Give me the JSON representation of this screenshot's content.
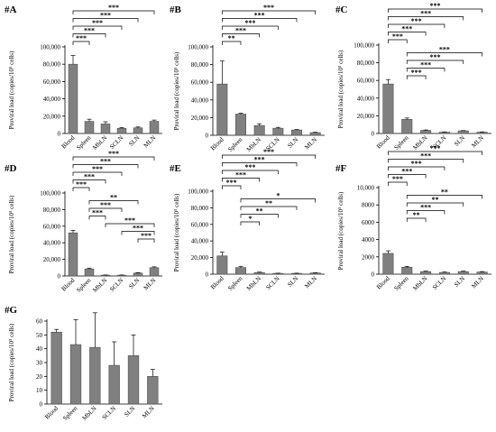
{
  "chart_data": [
    {
      "panel": "#A",
      "type": "bar",
      "ylabel": "Proviral load (copies/10⁵ cells)",
      "categories": [
        "Blood",
        "Spleen",
        "MbLN",
        "SCLN",
        "SLN",
        "MLN"
      ],
      "values": [
        80000,
        14000,
        11000,
        6000,
        6500,
        14000
      ],
      "errors": [
        10000,
        2500,
        2500,
        1000,
        1000,
        1500
      ],
      "ylim": [
        0,
        100000
      ],
      "yticks": [
        "0",
        "20,000",
        "40,000",
        "60,000",
        "80,000",
        "100,000"
      ],
      "tickvals": [
        0,
        20000,
        40000,
        60000,
        80000,
        100000
      ],
      "brackets": [
        {
          "from": "Blood",
          "to": "MLN",
          "label": "***"
        },
        {
          "from": "Blood",
          "to": "SLN",
          "label": "***"
        },
        {
          "from": "Blood",
          "to": "SCLN",
          "label": "***"
        },
        {
          "from": "Blood",
          "to": "MbLN",
          "label": "***"
        },
        {
          "from": "Blood",
          "to": "Spleen",
          "label": "***"
        }
      ]
    },
    {
      "panel": "#B",
      "type": "bar",
      "ylabel": "Proviral load (copies/10⁵ cells)",
      "categories": [
        "Blood",
        "Spleen",
        "MbLN",
        "SCLN",
        "SLN",
        "MLN"
      ],
      "values": [
        58000,
        24000,
        11000,
        8000,
        6000,
        3000
      ],
      "errors": [
        26000,
        1000,
        2000,
        1000,
        500,
        500
      ],
      "ylim": [
        0,
        100000
      ],
      "yticks": [
        "0",
        "20,000",
        "40,000",
        "60,000",
        "80,000",
        "100,000"
      ],
      "tickvals": [
        0,
        20000,
        40000,
        60000,
        80000,
        100000
      ],
      "brackets": [
        {
          "from": "Blood",
          "to": "MLN",
          "label": "***"
        },
        {
          "from": "Blood",
          "to": "SLN",
          "label": "***"
        },
        {
          "from": "Blood",
          "to": "SCLN",
          "label": "***"
        },
        {
          "from": "Blood",
          "to": "MbLN",
          "label": "***"
        },
        {
          "from": "Blood",
          "to": "Spleen",
          "label": "**"
        }
      ]
    },
    {
      "panel": "#C",
      "type": "bar",
      "ylabel": "Proviral load (copies/10⁵ cells)",
      "categories": [
        "Blood",
        "Spleen",
        "MbLN",
        "SCLN",
        "SLN",
        "MLN"
      ],
      "values": [
        56000,
        16000,
        3500,
        1500,
        3000,
        1500
      ],
      "errors": [
        5000,
        1500,
        500,
        300,
        300,
        300
      ],
      "ylim": [
        0,
        100000
      ],
      "yticks": [
        "0",
        "20,000",
        "40,000",
        "60,000",
        "80,000",
        "100,000"
      ],
      "tickvals": [
        0,
        20000,
        40000,
        60000,
        80000,
        100000
      ],
      "brackets": [
        {
          "from": "Blood",
          "to": "MLN",
          "label": "***"
        },
        {
          "from": "Blood",
          "to": "SLN",
          "label": "***"
        },
        {
          "from": "Blood",
          "to": "SCLN",
          "label": "***"
        },
        {
          "from": "Blood",
          "to": "MbLN",
          "label": "***"
        },
        {
          "from": "Blood",
          "to": "Spleen",
          "label": "***"
        },
        {
          "from": "Spleen",
          "to": "MLN",
          "label": "***"
        },
        {
          "from": "Spleen",
          "to": "SLN",
          "label": "***"
        },
        {
          "from": "Spleen",
          "to": "SCLN",
          "label": "***"
        },
        {
          "from": "Spleen",
          "to": "MbLN",
          "label": "***"
        }
      ]
    },
    {
      "panel": "#D",
      "type": "bar",
      "ylabel": "Proviral load (copies/10⁵ cells)",
      "categories": [
        "Blood",
        "Spleen",
        "MbLN",
        "SCLN",
        "SLN",
        "MLN"
      ],
      "values": [
        52000,
        8500,
        1000,
        1000,
        3500,
        10000
      ],
      "errors": [
        3000,
        1000,
        200,
        200,
        500,
        1000
      ],
      "ylim": [
        0,
        100000
      ],
      "yticks": [
        "0",
        "20,000",
        "40,000",
        "60,000",
        "80,000",
        "100,000"
      ],
      "tickvals": [
        0,
        20000,
        40000,
        60000,
        80000,
        100000
      ],
      "brackets": [
        {
          "from": "Blood",
          "to": "MLN",
          "label": "***"
        },
        {
          "from": "Blood",
          "to": "SLN",
          "label": "***"
        },
        {
          "from": "Blood",
          "to": "SCLN",
          "label": "***"
        },
        {
          "from": "Blood",
          "to": "MbLN",
          "label": "***"
        },
        {
          "from": "Blood",
          "to": "Spleen",
          "label": "***"
        },
        {
          "from": "Spleen",
          "to": "SLN",
          "label": "**"
        },
        {
          "from": "Spleen",
          "to": "SCLN",
          "label": "***"
        },
        {
          "from": "Spleen",
          "to": "MbLN",
          "label": "***"
        },
        {
          "from": "MbLN",
          "to": "MLN",
          "label": "***"
        },
        {
          "from": "SCLN",
          "to": "MLN",
          "label": "***"
        },
        {
          "from": "SLN",
          "to": "MLN",
          "label": "***"
        }
      ]
    },
    {
      "panel": "#E",
      "type": "bar",
      "ylabel": "Proviral load (copies/10⁵ cells)",
      "categories": [
        "Blood",
        "Spleen",
        "MbLN",
        "SCLN",
        "SLN",
        "MLN"
      ],
      "values": [
        22000,
        8000,
        2000,
        1000,
        1000,
        1500
      ],
      "errors": [
        4500,
        1500,
        500,
        200,
        200,
        300
      ],
      "ylim": [
        0,
        100000
      ],
      "yticks": [
        "0",
        "20,000",
        "40,000",
        "60,000",
        "80,000",
        "100,000"
      ],
      "tickvals": [
        0,
        20000,
        40000,
        60000,
        80000,
        100000
      ],
      "brackets": [
        {
          "from": "Blood",
          "to": "MLN",
          "label": "***"
        },
        {
          "from": "Blood",
          "to": "SLN",
          "label": "***"
        },
        {
          "from": "Blood",
          "to": "SCLN",
          "label": "***"
        },
        {
          "from": "Blood",
          "to": "MbLN",
          "label": "***"
        },
        {
          "from": "Blood",
          "to": "Spleen",
          "label": "***"
        },
        {
          "from": "Spleen",
          "to": "MLN",
          "label": "*"
        },
        {
          "from": "Spleen",
          "to": "SLN",
          "label": "**"
        },
        {
          "from": "Spleen",
          "to": "SCLN",
          "label": "**"
        },
        {
          "from": "Spleen",
          "to": "MbLN",
          "label": "*"
        }
      ]
    },
    {
      "panel": "#F",
      "type": "bar",
      "ylabel": "Proviral load (copies/10⁵ cells)",
      "categories": [
        "Blood",
        "Spleen",
        "MbLN",
        "SCLN",
        "SLN",
        "MLN"
      ],
      "values": [
        2400,
        800,
        300,
        200,
        300,
        250
      ],
      "errors": [
        300,
        100,
        50,
        50,
        50,
        50
      ],
      "ylim": [
        0,
        10000
      ],
      "yticks": [
        "0",
        "2000",
        "4000",
        "6000",
        "8000",
        "10,000"
      ],
      "tickvals": [
        0,
        2000,
        4000,
        6000,
        8000,
        10000
      ],
      "brackets": [
        {
          "from": "Blood",
          "to": "MLN",
          "label": "***"
        },
        {
          "from": "Blood",
          "to": "SLN",
          "label": "***"
        },
        {
          "from": "Blood",
          "to": "SCLN",
          "label": "***"
        },
        {
          "from": "Blood",
          "to": "MbLN",
          "label": "***"
        },
        {
          "from": "Blood",
          "to": "Spleen",
          "label": "***"
        },
        {
          "from": "Spleen",
          "to": "MLN",
          "label": "**"
        },
        {
          "from": "Spleen",
          "to": "SLN",
          "label": "**"
        },
        {
          "from": "Spleen",
          "to": "SCLN",
          "label": "***"
        },
        {
          "from": "Spleen",
          "to": "MbLN",
          "label": "**"
        }
      ]
    },
    {
      "panel": "#G",
      "type": "bar",
      "ylabel": "Proviral load (copies/10⁵ cells)",
      "categories": [
        "Blood",
        "Spleen",
        "MbLN",
        "SCLN",
        "SLN",
        "MLN"
      ],
      "values": [
        52,
        43,
        41,
        28,
        35,
        20
      ],
      "errors": [
        2,
        18,
        25,
        17,
        15,
        5
      ],
      "ylim": [
        0,
        60
      ],
      "yticks": [
        "0",
        "10",
        "20",
        "30",
        "40",
        "50",
        "60"
      ],
      "tickvals": [
        0,
        10,
        20,
        30,
        40,
        50,
        60
      ],
      "brackets": []
    }
  ]
}
